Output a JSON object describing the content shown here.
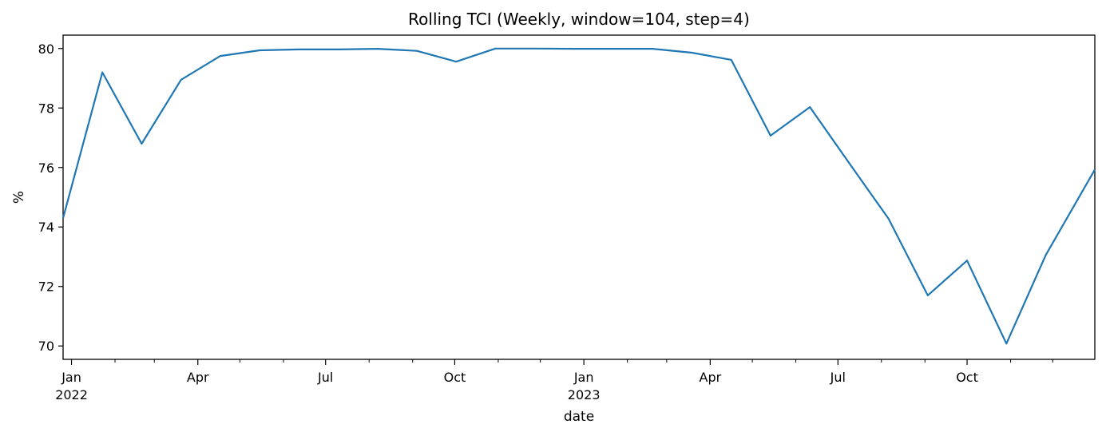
{
  "chart_data": {
    "type": "line",
    "title": "Rolling TCI (Weekly, window=104, step=4)",
    "xlabel": "date",
    "ylabel": "%",
    "ylim": [
      69.55,
      80.45
    ],
    "xlim": [
      "2021-12-26",
      "2023-12-31"
    ],
    "grid": false,
    "legend": false,
    "line_color": "#1f77b4",
    "x_major_ticks": [
      {
        "date": "2022-01-01",
        "label": "Jan",
        "sublabel": "2022"
      },
      {
        "date": "2022-04-01",
        "label": "Apr",
        "sublabel": ""
      },
      {
        "date": "2022-07-01",
        "label": "Jul",
        "sublabel": ""
      },
      {
        "date": "2022-10-01",
        "label": "Oct",
        "sublabel": ""
      },
      {
        "date": "2023-01-01",
        "label": "Jan",
        "sublabel": "2023"
      },
      {
        "date": "2023-04-01",
        "label": "Apr",
        "sublabel": ""
      },
      {
        "date": "2023-07-01",
        "label": "Jul",
        "sublabel": ""
      },
      {
        "date": "2023-10-01",
        "label": "Oct",
        "sublabel": ""
      }
    ],
    "x_minor_ticks": [
      "2022-02-01",
      "2022-03-01",
      "2022-05-01",
      "2022-06-01",
      "2022-08-01",
      "2022-09-01",
      "2022-11-01",
      "2022-12-01",
      "2023-02-01",
      "2023-03-01",
      "2023-05-01",
      "2023-06-01",
      "2023-08-01",
      "2023-09-01",
      "2023-11-01",
      "2023-12-01"
    ],
    "y_ticks": [
      70,
      72,
      74,
      76,
      78,
      80
    ],
    "series": [
      {
        "name": "",
        "x": [
          "2021-12-26",
          "2022-01-23",
          "2022-02-20",
          "2022-03-20",
          "2022-04-17",
          "2022-05-15",
          "2022-06-12",
          "2022-07-10",
          "2022-08-07",
          "2022-09-04",
          "2022-10-02",
          "2022-10-30",
          "2022-11-27",
          "2022-12-25",
          "2023-01-22",
          "2023-02-19",
          "2023-03-19",
          "2023-04-16",
          "2023-05-14",
          "2023-06-11",
          "2023-07-09",
          "2023-08-06",
          "2023-09-03",
          "2023-10-01",
          "2023-10-29",
          "2023-11-26",
          "2023-12-31"
        ],
        "values": [
          74.3,
          79.2,
          76.8,
          78.95,
          79.75,
          79.94,
          79.97,
          79.97,
          79.99,
          79.92,
          79.56,
          80.0,
          80.0,
          79.99,
          79.99,
          79.99,
          79.86,
          79.62,
          77.07,
          78.03,
          76.15,
          74.28,
          71.7,
          72.87,
          70.08,
          73.05,
          75.93
        ]
      }
    ]
  }
}
